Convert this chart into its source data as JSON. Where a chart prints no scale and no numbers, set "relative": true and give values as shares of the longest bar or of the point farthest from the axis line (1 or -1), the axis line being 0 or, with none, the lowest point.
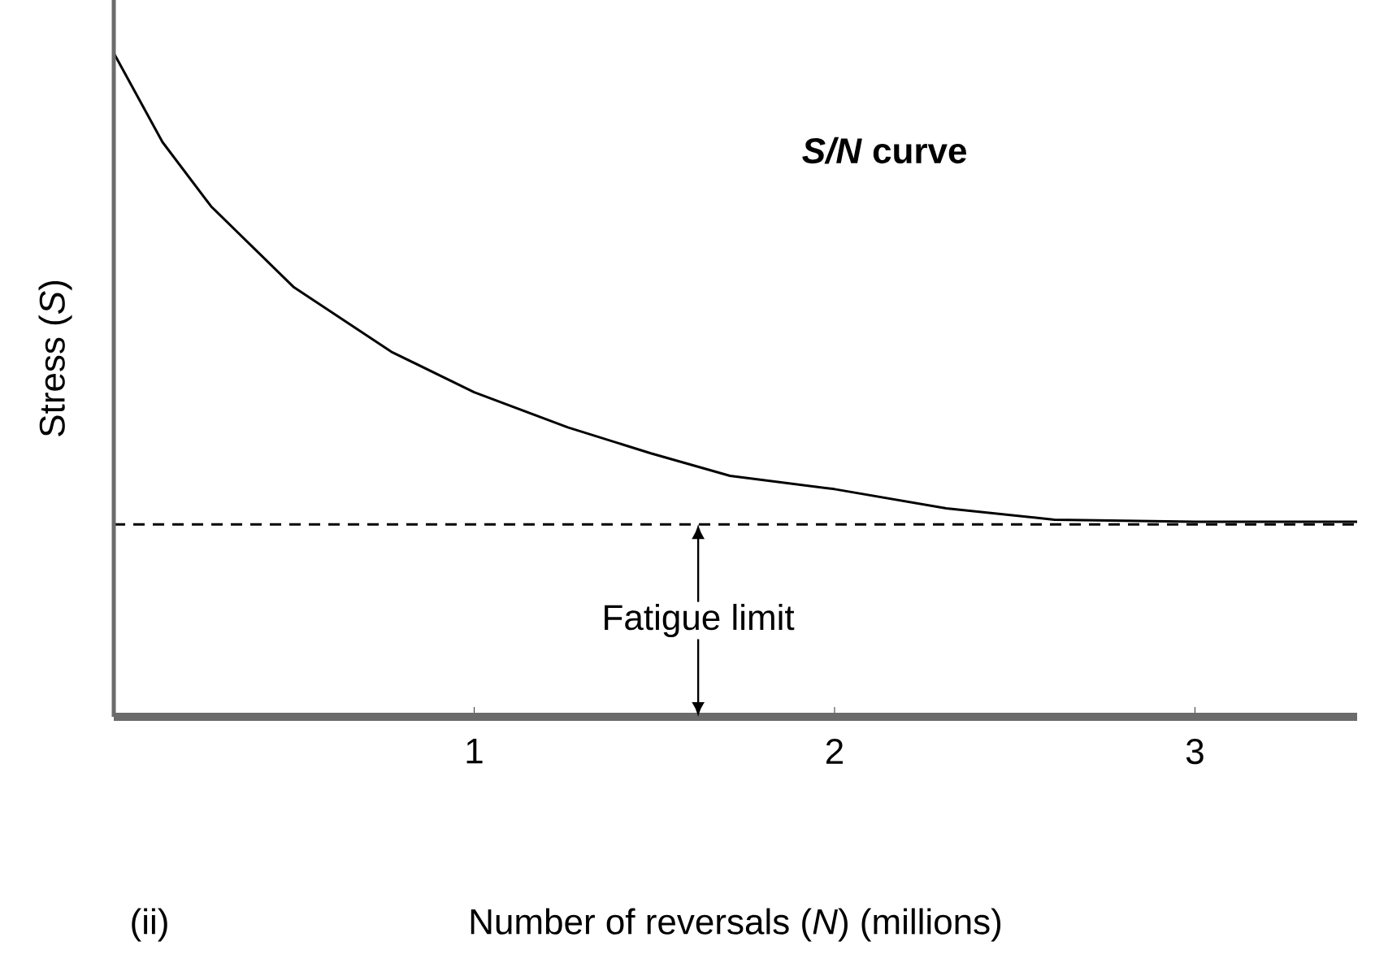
{
  "chart_data": {
    "type": "line",
    "relative": true,
    "xlabel": "Number of reversals (*N*) (millions)",
    "ylabel": "Stress (*S*)",
    "x": [
      0,
      0.135,
      0.27,
      0.5,
      0.77,
      1.0,
      1.26,
      1.49,
      1.71,
      2.0,
      2.31,
      2.61,
      3.0,
      3.45
    ],
    "series": [
      {
        "color": "#000000",
        "values": [
          1,
          0.866,
          0.769,
          0.647,
          0.55,
          0.489,
          0.436,
          0.397,
          0.363,
          0.343,
          0.314,
          0.297,
          0.294,
          0.294
        ]
      }
    ],
    "xlim": [
      0,
      3.45
    ],
    "xticks": [
      1,
      2,
      3
    ],
    "tick_labels": "x",
    "ref_lines": [
      {
        "axis": "y",
        "value": 0.29,
        "label": "Fatigue limit",
        "line_style": "dashed"
      }
    ],
    "annotations": [
      "*S/N* curve",
      "(ii)"
    ]
  }
}
